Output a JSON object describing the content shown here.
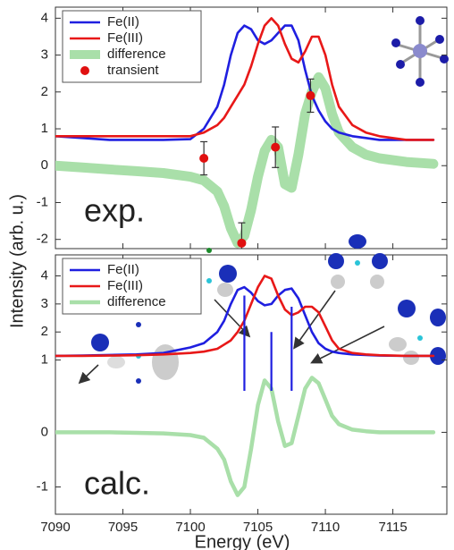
{
  "chart_data": [
    {
      "type": "line",
      "annotation": "exp.",
      "ylabel": "Intensity (arb. u.)",
      "xlim": [
        7090,
        7119
      ],
      "ylim": [
        -2.25,
        4.3
      ],
      "yticks": [
        -2,
        -1,
        0,
        1,
        2,
        3,
        4
      ],
      "x": [
        7090,
        7092,
        7094,
        7096,
        7098,
        7100,
        7101,
        7102,
        7102.5,
        7103,
        7103.5,
        7104,
        7104.5,
        7105,
        7105.5,
        7106,
        7106.5,
        7107,
        7107.5,
        7108,
        7108.5,
        7109,
        7109.5,
        7110,
        7110.5,
        7111,
        7112,
        7113,
        7114,
        7116,
        7118
      ],
      "series": [
        {
          "name": "Fe(II)",
          "color": "#1f1fe0",
          "values": [
            0.8,
            0.75,
            0.7,
            0.7,
            0.7,
            0.72,
            1.0,
            1.6,
            2.2,
            3.0,
            3.6,
            3.8,
            3.7,
            3.4,
            3.3,
            3.4,
            3.6,
            3.8,
            3.8,
            3.4,
            2.6,
            1.9,
            1.5,
            1.2,
            1.0,
            0.9,
            0.8,
            0.75,
            0.7,
            0.7,
            0.7
          ]
        },
        {
          "name": "Fe(III)",
          "color": "#e81818",
          "values": [
            0.8,
            0.8,
            0.8,
            0.8,
            0.8,
            0.8,
            0.9,
            1.1,
            1.3,
            1.6,
            1.9,
            2.2,
            2.7,
            3.3,
            3.8,
            4.0,
            3.8,
            3.3,
            2.9,
            2.8,
            3.1,
            3.5,
            3.5,
            3.0,
            2.2,
            1.6,
            1.1,
            0.9,
            0.8,
            0.7,
            0.7
          ]
        },
        {
          "name": "difference",
          "color": "#a9dfa9",
          "style": "band",
          "values": [
            0.0,
            -0.05,
            -0.1,
            -0.15,
            -0.2,
            -0.3,
            -0.4,
            -0.7,
            -1.1,
            -1.7,
            -2.1,
            -1.9,
            -1.2,
            -0.3,
            0.4,
            0.7,
            0.5,
            -0.5,
            -0.6,
            0.3,
            1.4,
            2.0,
            2.4,
            2.1,
            1.4,
            0.9,
            0.5,
            0.3,
            0.2,
            0.1,
            0.05
          ]
        }
      ],
      "points": {
        "name": "transient",
        "color": "#e01010",
        "x": [
          7101,
          7103.8,
          7106.3,
          7108.9
        ],
        "values": [
          0.2,
          -2.1,
          0.5,
          1.9
        ],
        "errors": [
          0.45,
          0.55,
          0.55,
          0.45
        ]
      }
    },
    {
      "type": "line",
      "annotation": "calc.",
      "xlabel": "Energy (eV)",
      "xlim": [
        7090,
        7119
      ],
      "xticks": [
        7090,
        7095,
        7100,
        7105,
        7110,
        7115
      ],
      "ylim": [
        -4.5,
        4.75
      ],
      "yticks": [
        1,
        2,
        3,
        4
      ],
      "y2lim": [
        -1.5,
        3.25
      ],
      "y2ticks": [
        -1,
        0
      ],
      "x": [
        7090,
        7092,
        7094,
        7096,
        7098,
        7100,
        7101,
        7102,
        7102.5,
        7103,
        7103.5,
        7104,
        7104.5,
        7105,
        7105.5,
        7106,
        7106.5,
        7107,
        7107.5,
        7108,
        7108.5,
        7109,
        7109.5,
        7110,
        7110.5,
        7111,
        7112,
        7113,
        7114,
        7116,
        7118
      ],
      "series": [
        {
          "name": "Fe(II)",
          "color": "#1f1fe0",
          "values": [
            1.15,
            1.16,
            1.18,
            1.2,
            1.25,
            1.45,
            1.6,
            2.0,
            2.4,
            3.0,
            3.5,
            3.6,
            3.4,
            3.1,
            2.95,
            3.0,
            3.3,
            3.5,
            3.55,
            3.2,
            2.6,
            2.0,
            1.6,
            1.4,
            1.3,
            1.25,
            1.2,
            1.18,
            1.16,
            1.15,
            1.15
          ]
        },
        {
          "name": "Fe(III)",
          "color": "#e81818",
          "values": [
            1.15,
            1.15,
            1.16,
            1.17,
            1.2,
            1.25,
            1.3,
            1.4,
            1.55,
            1.7,
            2.0,
            2.4,
            3.0,
            3.6,
            4.0,
            3.9,
            3.3,
            2.8,
            2.6,
            2.7,
            2.9,
            2.9,
            2.7,
            2.2,
            1.7,
            1.4,
            1.25,
            1.2,
            1.17,
            1.15,
            1.15
          ]
        },
        {
          "name": "difference",
          "color": "#a9dfa9",
          "axis": "y2",
          "values": [
            0.0,
            0.0,
            0.0,
            -0.01,
            -0.02,
            -0.05,
            -0.1,
            -0.3,
            -0.5,
            -0.9,
            -1.15,
            -1.0,
            -0.3,
            0.5,
            0.95,
            0.8,
            0.2,
            -0.25,
            -0.2,
            0.3,
            0.8,
            1.0,
            0.9,
            0.6,
            0.3,
            0.15,
            0.05,
            0.02,
            0.0,
            0.0,
            0.0
          ]
        }
      ],
      "sticks": {
        "color": "#1f1fe0",
        "x": [
          7104,
          7106,
          7107.5
        ],
        "values": [
          3.3,
          2.0,
          2.9
        ]
      }
    }
  ]
}
